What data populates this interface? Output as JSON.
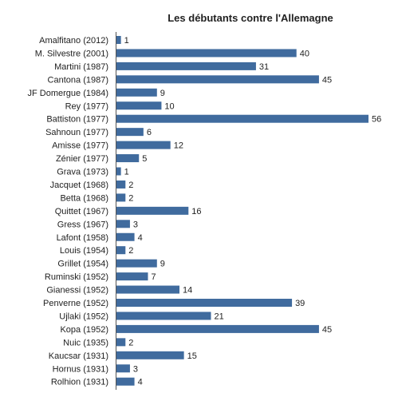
{
  "chart_data": {
    "type": "bar",
    "orientation": "horizontal",
    "title": "Les débutants contre l'Allemagne",
    "xlabel": "",
    "ylabel": "",
    "grid": false,
    "legend": "none",
    "bar_color": "#406b9e",
    "xlim": [
      0,
      56
    ],
    "categories": [
      "Amalfitano (2012)",
      "M. Silvestre (2001)",
      "Martini (1987)",
      "Cantona (1987)",
      "JF Domergue (1984)",
      "Rey (1977)",
      "Battiston (1977)",
      "Sahnoun (1977)",
      "Amisse (1977)",
      "Zénier (1977)",
      "Grava (1973)",
      "Jacquet (1968)",
      "Betta (1968)",
      "Quittet (1967)",
      "Gress (1967)",
      "Lafont (1958)",
      "Louis (1954)",
      "Grillet (1954)",
      "Ruminski (1952)",
      "Gianessi (1952)",
      "Penverne (1952)",
      "Ujlaki (1952)",
      "Kopa (1952)",
      "Nuic (1935)",
      "Kaucsar (1931)",
      "Hornus (1931)",
      "Rolhion (1931)"
    ],
    "values": [
      1,
      40,
      31,
      45,
      9,
      10,
      56,
      6,
      12,
      5,
      1,
      2,
      2,
      16,
      3,
      4,
      2,
      9,
      7,
      14,
      39,
      21,
      45,
      2,
      15,
      3,
      4
    ]
  }
}
